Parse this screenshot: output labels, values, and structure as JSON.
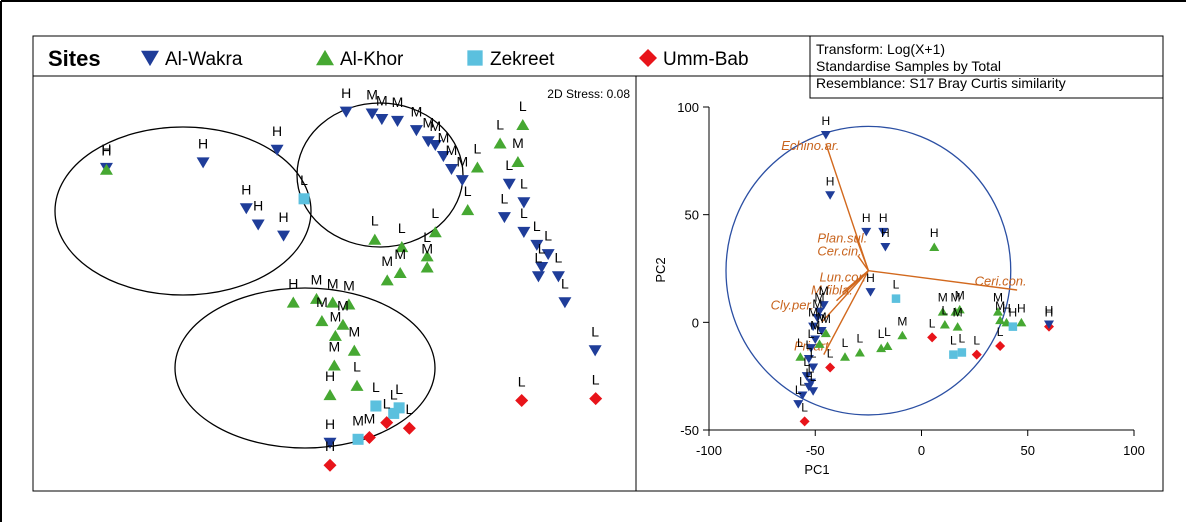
{
  "legend": {
    "title": "Sites",
    "items": [
      {
        "name": "Al-Wakra",
        "marker": "triangle-down",
        "color": "#1f3d99"
      },
      {
        "name": "Al-Khor",
        "marker": "triangle-up",
        "color": "#46a832"
      },
      {
        "name": "Zekreet",
        "marker": "square",
        "color": "#5bc0de"
      },
      {
        "name": "Umm-Bab",
        "marker": "diamond",
        "color": "#e8141a"
      }
    ]
  },
  "info_box": {
    "lines": [
      "Transform: Log(X+1)",
      "Standardise Samples by Total",
      "Resemblance: S17 Bray Curtis similarity"
    ]
  },
  "chart_data": [
    {
      "type": "scatter",
      "title": "",
      "stress_label": "2D Stress: 0.08",
      "axes": "none (nMDS ordination, arbitrary units)",
      "xlim": [
        0,
        100
      ],
      "ylim": [
        0,
        100
      ],
      "groups": [
        "H",
        "M",
        "L"
      ],
      "points": [
        {
          "site": "Al-Wakra",
          "label": "H",
          "x": 8.6,
          "y": 84.3
        },
        {
          "site": "Al-Khor",
          "label": "H",
          "x": 8.6,
          "y": 83.9
        },
        {
          "site": "Al-Wakra",
          "label": "H",
          "x": 26.5,
          "y": 85.8
        },
        {
          "site": "Al-Wakra",
          "label": "H",
          "x": 40.2,
          "y": 89.2
        },
        {
          "site": "Al-Wakra",
          "label": "H",
          "x": 34.5,
          "y": 73.4
        },
        {
          "site": "Al-Wakra",
          "label": "H",
          "x": 36.7,
          "y": 69.0
        },
        {
          "site": "Al-Wakra",
          "label": "H",
          "x": 41.4,
          "y": 66.0
        },
        {
          "site": "Zekreet",
          "label": "L",
          "x": 45.2,
          "y": 76.0
        },
        {
          "site": "Al-Wakra",
          "label": "H",
          "x": 53.0,
          "y": 99.5
        },
        {
          "site": "Al-Wakra",
          "label": "M",
          "x": 57.8,
          "y": 99.0
        },
        {
          "site": "Al-Wakra",
          "label": "M",
          "x": 59.6,
          "y": 97.5
        },
        {
          "site": "Al-Wakra",
          "label": "M",
          "x": 62.5,
          "y": 97.0
        },
        {
          "site": "Al-Wakra",
          "label": "M",
          "x": 66.0,
          "y": 94.5
        },
        {
          "site": "Al-Wakra",
          "label": "M",
          "x": 68.2,
          "y": 91.5
        },
        {
          "site": "Al-Wakra",
          "label": "M",
          "x": 69.5,
          "y": 90.5
        },
        {
          "site": "Al-Wakra",
          "label": "M",
          "x": 71.0,
          "y": 87.5
        },
        {
          "site": "Al-Wakra",
          "label": "M",
          "x": 72.5,
          "y": 84.0
        },
        {
          "site": "Al-Wakra",
          "label": "M",
          "x": 74.5,
          "y": 81.0
        },
        {
          "site": "Al-Khor",
          "label": "L",
          "x": 85.7,
          "y": 96.0
        },
        {
          "site": "Al-Khor",
          "label": "L",
          "x": 81.5,
          "y": 91.0
        },
        {
          "site": "Al-Khor",
          "label": "M",
          "x": 84.8,
          "y": 86.0
        },
        {
          "site": "Al-Khor",
          "label": "L",
          "x": 77.3,
          "y": 84.5
        },
        {
          "site": "Al-Wakra",
          "label": "L",
          "x": 83.2,
          "y": 80.0
        },
        {
          "site": "Al-Wakra",
          "label": "L",
          "x": 85.9,
          "y": 75.0
        },
        {
          "site": "Al-Wakra",
          "label": "L",
          "x": 82.3,
          "y": 71.0
        },
        {
          "site": "Al-Khor",
          "label": "L",
          "x": 75.5,
          "y": 73.0
        },
        {
          "site": "Al-Khor",
          "label": "L",
          "x": 69.5,
          "y": 67.0
        },
        {
          "site": "Al-Khor",
          "label": "L",
          "x": 63.3,
          "y": 63.0
        },
        {
          "site": "Al-Khor",
          "label": "L",
          "x": 68.0,
          "y": 60.5
        },
        {
          "site": "Al-Khor",
          "label": "M",
          "x": 68.0,
          "y": 57.5
        },
        {
          "site": "Al-Khor",
          "label": "M",
          "x": 63.0,
          "y": 56.0
        },
        {
          "site": "Al-Khor",
          "label": "M",
          "x": 60.6,
          "y": 54.0
        },
        {
          "site": "Al-Khor",
          "label": "L",
          "x": 58.3,
          "y": 65.0
        },
        {
          "site": "Al-Wakra",
          "label": "L",
          "x": 85.9,
          "y": 67.0
        },
        {
          "site": "Al-Wakra",
          "label": "L",
          "x": 88.3,
          "y": 63.5
        },
        {
          "site": "Al-Wakra",
          "label": "L",
          "x": 90.4,
          "y": 61.0
        },
        {
          "site": "Al-Wakra",
          "label": "L",
          "x": 89.2,
          "y": 57.5
        },
        {
          "site": "Al-Wakra",
          "label": "L",
          "x": 88.6,
          "y": 55.0
        },
        {
          "site": "Al-Wakra",
          "label": "L",
          "x": 92.3,
          "y": 55.0
        },
        {
          "site": "Al-Wakra",
          "label": "L",
          "x": 93.5,
          "y": 48.0
        },
        {
          "site": "Al-Wakra",
          "label": "L",
          "x": 99.1,
          "y": 35.0
        },
        {
          "site": "Umm-Bab",
          "label": "L",
          "x": 99.2,
          "y": 22.0
        },
        {
          "site": "Umm-Bab",
          "label": "L",
          "x": 85.5,
          "y": 21.5
        },
        {
          "site": "Al-Khor",
          "label": "H",
          "x": 43.2,
          "y": 48.0
        },
        {
          "site": "Al-Khor",
          "label": "M",
          "x": 47.5,
          "y": 49.0
        },
        {
          "site": "Al-Khor",
          "label": "M",
          "x": 50.5,
          "y": 48.0
        },
        {
          "site": "Al-Khor",
          "label": "M",
          "x": 53.5,
          "y": 47.5
        },
        {
          "site": "Al-Khor",
          "label": "M",
          "x": 48.5,
          "y": 43.0
        },
        {
          "site": "Al-Khor",
          "label": "M",
          "x": 52.4,
          "y": 42.0
        },
        {
          "site": "Al-Khor",
          "label": "M",
          "x": 51.0,
          "y": 39.0
        },
        {
          "site": "Al-Khor",
          "label": "M",
          "x": 54.5,
          "y": 35.0
        },
        {
          "site": "Al-Khor",
          "label": "M",
          "x": 50.8,
          "y": 31.0
        },
        {
          "site": "Al-Khor",
          "label": "L",
          "x": 55.0,
          "y": 25.5
        },
        {
          "site": "Zekreet",
          "label": "L",
          "x": 58.5,
          "y": 20.0
        },
        {
          "site": "Zekreet",
          "label": "L",
          "x": 62.8,
          "y": 19.5
        },
        {
          "site": "Zekreet",
          "label": "L",
          "x": 61.8,
          "y": 18.0
        },
        {
          "site": "Umm-Bab",
          "label": "L",
          "x": 60.5,
          "y": 15.5
        },
        {
          "site": "Umm-Bab",
          "label": "L",
          "x": 64.7,
          "y": 14.0
        },
        {
          "site": "Umm-Bab",
          "label": "M",
          "x": 57.3,
          "y": 11.5
        },
        {
          "site": "Zekreet",
          "label": "M",
          "x": 55.2,
          "y": 11.0
        },
        {
          "site": "Al-Khor",
          "label": "H",
          "x": 50.0,
          "y": 23.0
        },
        {
          "site": "Al-Wakra",
          "label": "H",
          "x": 50.0,
          "y": 10.0
        },
        {
          "site": "Umm-Bab",
          "label": "H",
          "x": 50.0,
          "y": 4.0
        }
      ],
      "ellipses": 3
    },
    {
      "type": "scatter",
      "title": "",
      "xlabel": "PC1",
      "ylabel": "PC2",
      "xlim": [
        -100,
        100
      ],
      "ylim": [
        -50,
        100
      ],
      "xticks": [
        -100,
        -50,
        0,
        50,
        100
      ],
      "yticks": [
        -50,
        0,
        50,
        100
      ],
      "vectors": [
        {
          "name": "Echino.ar.",
          "x": -45,
          "y": 83
        },
        {
          "name": "Plan.sul.",
          "x": -31,
          "y": 40
        },
        {
          "name": "Cer.cin.",
          "x": -30,
          "y": 31
        },
        {
          "name": "Ceri.con.",
          "x": 45,
          "y": 15
        },
        {
          "name": "Lun.cor.",
          "x": -37,
          "y": 14
        },
        {
          "name": "M.fibla.",
          "x": -40,
          "y": 10
        },
        {
          "name": "Cly.per.",
          "x": -47,
          "y": 0
        },
        {
          "name": "Pri.art.",
          "x": -46,
          "y": -15
        }
      ],
      "vector_origin": [
        -25,
        24
      ],
      "circle": {
        "cx": -25,
        "cy": 24,
        "r": 67
      },
      "points": [
        {
          "site": "Al-Wakra",
          "label": "H",
          "x": -45,
          "y": 87
        },
        {
          "site": "Al-Wakra",
          "label": "H",
          "x": -43,
          "y": 59
        },
        {
          "site": "Al-Wakra",
          "label": "H",
          "x": -26,
          "y": 42
        },
        {
          "site": "Al-Wakra",
          "label": "H",
          "x": -18,
          "y": 42
        },
        {
          "site": "Al-Wakra",
          "label": "H",
          "x": -17,
          "y": 35
        },
        {
          "site": "Al-Khor",
          "label": "H",
          "x": 6,
          "y": 35
        },
        {
          "site": "Al-Wakra",
          "label": "H",
          "x": -24,
          "y": 14
        },
        {
          "site": "Zekreet",
          "label": "L",
          "x": -12,
          "y": 11
        },
        {
          "site": "Al-Khor",
          "label": "M",
          "x": 10,
          "y": 5
        },
        {
          "site": "Al-Khor",
          "label": "M",
          "x": 16,
          "y": 5
        },
        {
          "site": "Al-Khor",
          "label": "M",
          "x": 18,
          "y": 6
        },
        {
          "site": "Al-Khor",
          "label": "M",
          "x": 17,
          "y": -2
        },
        {
          "site": "Al-Khor",
          "label": "M",
          "x": 36,
          "y": 5
        },
        {
          "site": "Al-Khor",
          "label": "M",
          "x": 37,
          "y": 1
        },
        {
          "site": "Al-Khor",
          "label": "H",
          "x": 40,
          "y": 0
        },
        {
          "site": "Al-Khor",
          "label": "H",
          "x": 47,
          "y": 0
        },
        {
          "site": "Zekreet",
          "label": "H",
          "x": 43,
          "y": -2
        },
        {
          "site": "Al-Khor",
          "label": "L",
          "x": 11,
          "y": -1
        },
        {
          "site": "Al-Khor",
          "label": "M",
          "x": -9,
          "y": -6
        },
        {
          "site": "Al-Khor",
          "label": "L",
          "x": -16,
          "y": -11
        },
        {
          "site": "Al-Khor",
          "label": "L",
          "x": -19,
          "y": -12
        },
        {
          "site": "Al-Khor",
          "label": "L",
          "x": -29,
          "y": -14
        },
        {
          "site": "Al-Khor",
          "label": "L",
          "x": -36,
          "y": -16
        },
        {
          "site": "Al-Khor",
          "label": "L",
          "x": -57,
          "y": -16
        },
        {
          "site": "Zekreet",
          "label": "L",
          "x": 15,
          "y": -15
        },
        {
          "site": "Zekreet",
          "label": "L",
          "x": 19,
          "y": -14
        },
        {
          "site": "Umm-Bab",
          "label": "L",
          "x": 5,
          "y": -7
        },
        {
          "site": "Umm-Bab",
          "label": "L",
          "x": 26,
          "y": -15
        },
        {
          "site": "Umm-Bab",
          "label": "L",
          "x": 37,
          "y": -11
        },
        {
          "site": "Umm-Bab",
          "label": "H",
          "x": 60,
          "y": -2
        },
        {
          "site": "Al-Wakra",
          "label": "H",
          "x": 60,
          "y": -1
        },
        {
          "site": "Al-Wakra",
          "label": "M",
          "x": -46,
          "y": 8
        },
        {
          "site": "Al-Wakra",
          "label": "M",
          "x": -48,
          "y": 5
        },
        {
          "site": "Al-Wakra",
          "label": "M",
          "x": -49,
          "y": 2
        },
        {
          "site": "Al-Wakra",
          "label": "M",
          "x": -51,
          "y": -2
        },
        {
          "site": "Al-Wakra",
          "label": "M",
          "x": -47,
          "y": -4
        },
        {
          "site": "Al-Wakra",
          "label": "M",
          "x": -50,
          "y": -8
        },
        {
          "site": "Al-Wakra",
          "label": "L",
          "x": -52,
          "y": -12
        },
        {
          "site": "Al-Wakra",
          "label": "L",
          "x": -53,
          "y": -17
        },
        {
          "site": "Al-Wakra",
          "label": "L",
          "x": -51,
          "y": -21
        },
        {
          "site": "Al-Wakra",
          "label": "L",
          "x": -54,
          "y": -25
        },
        {
          "site": "Al-Wakra",
          "label": "L",
          "x": -52,
          "y": -28
        },
        {
          "site": "Al-Wakra",
          "label": "L",
          "x": -51,
          "y": -32
        },
        {
          "site": "Al-Wakra",
          "label": "L",
          "x": -56,
          "y": -34
        },
        {
          "site": "Al-Wakra",
          "label": "L",
          "x": -53,
          "y": -30
        },
        {
          "site": "Al-Khor",
          "label": "M",
          "x": -45,
          "y": -5
        },
        {
          "site": "Al-Khor",
          "label": "L",
          "x": -48,
          "y": -10
        },
        {
          "site": "Umm-Bab",
          "label": "L",
          "x": -43,
          "y": -21
        },
        {
          "site": "Umm-Bab",
          "label": "L",
          "x": -55,
          "y": -46
        },
        {
          "site": "Al-Wakra",
          "label": "L",
          "x": -58,
          "y": -38
        }
      ]
    }
  ]
}
